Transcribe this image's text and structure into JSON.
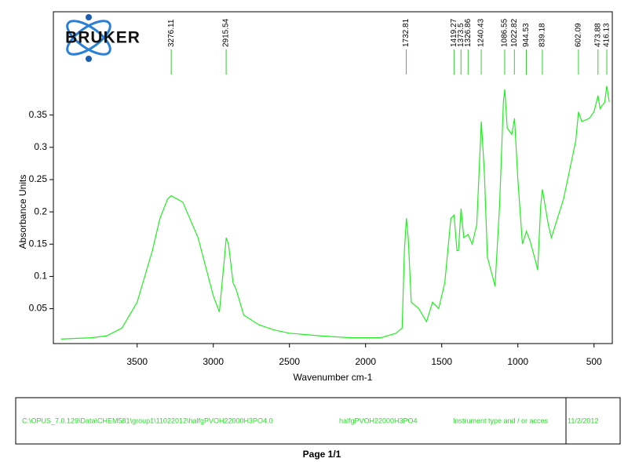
{
  "chart_data": {
    "type": "line",
    "x_label": "Wavenumber cm-1",
    "y_label": "Absorbance Units",
    "xlim": [
      4050,
      380
    ],
    "ylim": [
      -0.004,
      0.51
    ],
    "xticks": [
      3500,
      3000,
      2500,
      2000,
      1500,
      1000,
      500
    ],
    "yticks": [
      0.05,
      0.1,
      0.15,
      0.2,
      0.25,
      0.3,
      0.35
    ],
    "peaks": [
      3276.11,
      2915.54,
      1732.81,
      1419.27,
      1373.5,
      1326.86,
      1240.43,
      1086.55,
      1022.82,
      944.53,
      839.18,
      602.09,
      473.88,
      416.13
    ],
    "peak_color": "#33cc33",
    "x": [
      4000,
      3800,
      3700,
      3600,
      3500,
      3400,
      3350,
      3300,
      3276,
      3200,
      3100,
      3000,
      2960,
      2930,
      2915,
      2900,
      2870,
      2850,
      2800,
      2700,
      2600,
      2500,
      2300,
      2100,
      1900,
      1800,
      1760,
      1745,
      1732,
      1720,
      1700,
      1650,
      1600,
      1560,
      1520,
      1480,
      1440,
      1419,
      1400,
      1390,
      1373,
      1355,
      1327,
      1300,
      1270,
      1240,
      1220,
      1200,
      1150,
      1120,
      1095,
      1086,
      1070,
      1040,
      1022,
      1000,
      970,
      944,
      920,
      880,
      870,
      850,
      839,
      800,
      780,
      700,
      620,
      602,
      580,
      530,
      500,
      474,
      460,
      430,
      416,
      400
    ],
    "series": [
      {
        "name": "halfgPVOH22000H3PO4",
        "color": "#22ee22",
        "values": [
          0.003,
          0.005,
          0.008,
          0.02,
          0.06,
          0.14,
          0.19,
          0.22,
          0.225,
          0.215,
          0.16,
          0.07,
          0.045,
          0.12,
          0.16,
          0.15,
          0.09,
          0.08,
          0.04,
          0.025,
          0.017,
          0.012,
          0.008,
          0.005,
          0.005,
          0.012,
          0.02,
          0.14,
          0.19,
          0.16,
          0.06,
          0.05,
          0.03,
          0.06,
          0.05,
          0.09,
          0.19,
          0.195,
          0.14,
          0.14,
          0.205,
          0.16,
          0.165,
          0.15,
          0.18,
          0.34,
          0.26,
          0.13,
          0.085,
          0.21,
          0.37,
          0.39,
          0.33,
          0.32,
          0.345,
          0.25,
          0.15,
          0.17,
          0.155,
          0.12,
          0.11,
          0.21,
          0.235,
          0.18,
          0.16,
          0.22,
          0.31,
          0.355,
          0.34,
          0.345,
          0.355,
          0.38,
          0.36,
          0.37,
          0.395,
          0.37
        ]
      }
    ]
  },
  "logo": "BRUKER",
  "footer": {
    "path": "C:\\OPUS_7.0.129\\Data\\CHEM581\\group1\\11022012\\halfgPVOH22000H3PO4.0",
    "sample": "halfgPVOH22000H3PO4",
    "instrument": "Instrument type and / or acces",
    "date": "11/2/2012",
    "page": "Page 1/1"
  }
}
